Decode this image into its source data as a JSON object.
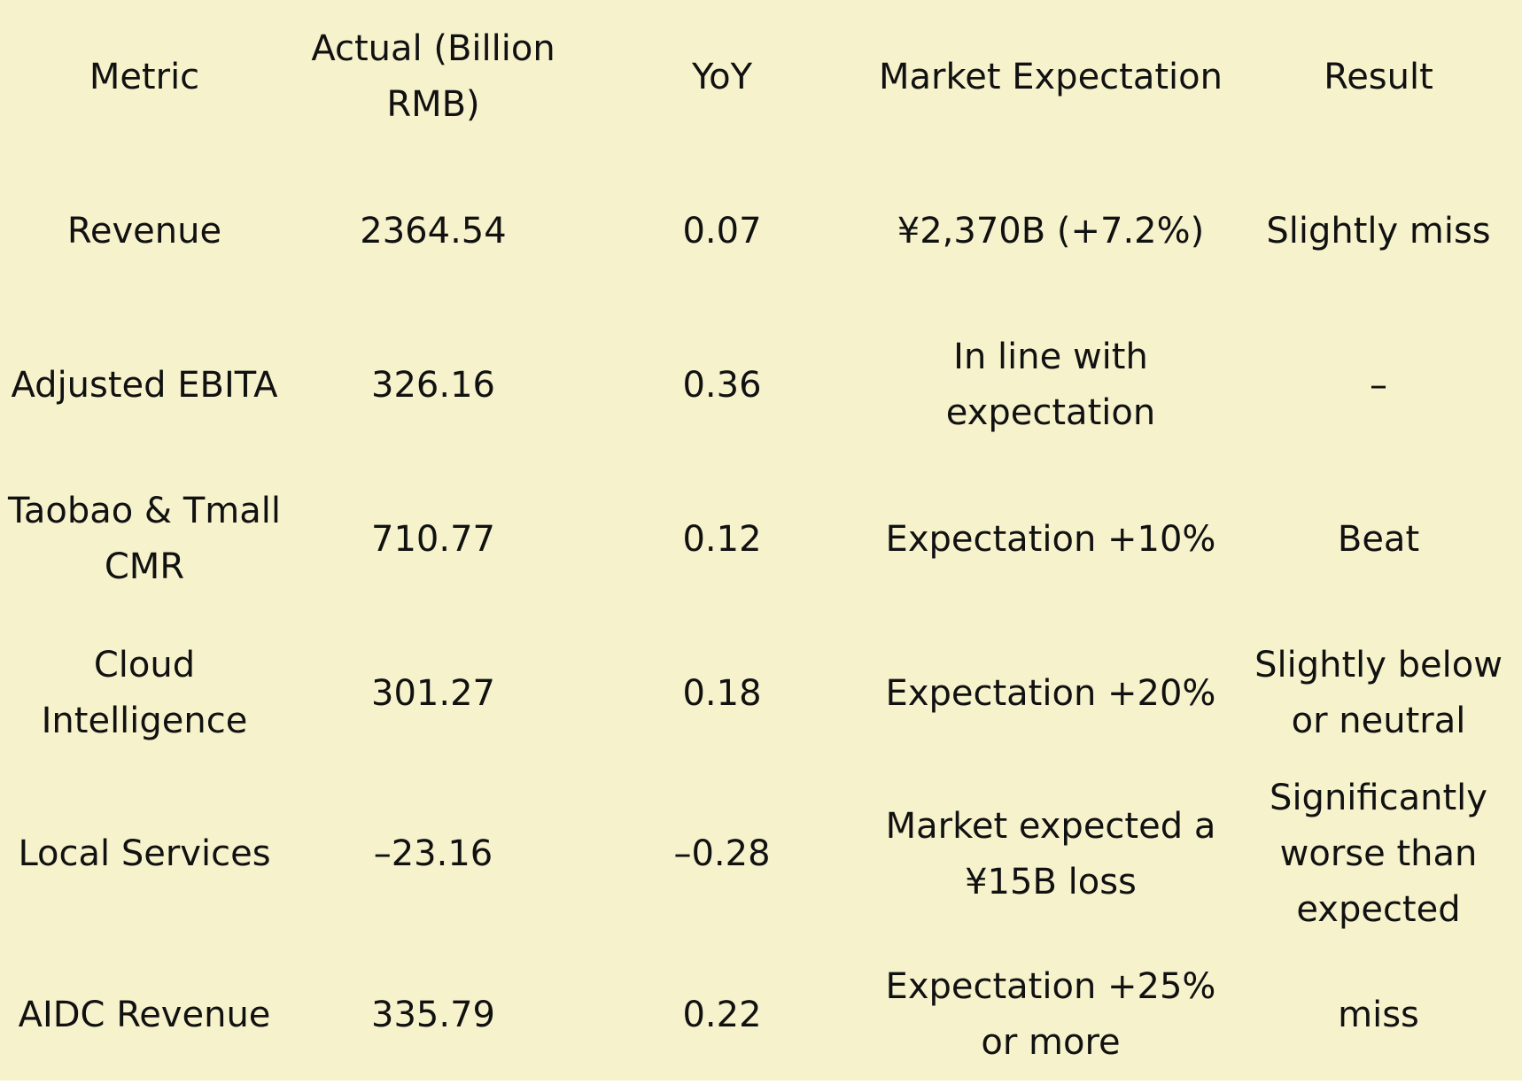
{
  "table": {
    "headers": [
      "Metric",
      "Actual (Billion RMB)",
      "YoY",
      "Market Expectation",
      "Result"
    ],
    "rows": [
      [
        "Revenue",
        "2364.54",
        "0.07",
        "¥2,370B (+7.2%)",
        "Slightly miss"
      ],
      [
        "Adjusted EBITA",
        "326.16",
        "0.36",
        "In line with expectation",
        "–"
      ],
      [
        "Taobao & Tmall CMR",
        "710.77",
        "0.12",
        "Expectation +10%",
        "Beat"
      ],
      [
        "Cloud Intelligence",
        "301.27",
        "0.18",
        "Expectation +20%",
        "Slightly below or neutral"
      ],
      [
        "Local Services",
        "–23.16",
        "–0.28",
        "Market expected a ¥15B loss",
        "Significantly worse than expected"
      ],
      [
        "AIDC Revenue",
        "335.79",
        "0.22",
        "Expectation +25% or more",
        "miss"
      ]
    ]
  },
  "colors": {
    "background": "#f6f2cc",
    "text": "#111111"
  }
}
